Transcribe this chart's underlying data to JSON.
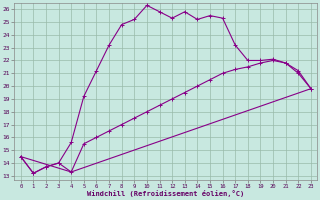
{
  "bg_color": "#c8e8e0",
  "line_color": "#880088",
  "grid_color": "#99bbaa",
  "xlabel": "Windchill (Refroidissement éolien,°C)",
  "xlim": [
    -0.5,
    23.5
  ],
  "ylim": [
    12.7,
    26.5
  ],
  "xticks": [
    0,
    1,
    2,
    3,
    4,
    5,
    6,
    7,
    8,
    9,
    10,
    11,
    12,
    13,
    14,
    15,
    16,
    17,
    18,
    19,
    20,
    21,
    22,
    23
  ],
  "yticks": [
    13,
    14,
    15,
    16,
    17,
    18,
    19,
    20,
    21,
    22,
    23,
    24,
    25,
    26
  ],
  "curve1_x": [
    0,
    1,
    2,
    3,
    4,
    5,
    6,
    7,
    8,
    9,
    10,
    11,
    12,
    13,
    14,
    15,
    16,
    17,
    18,
    19,
    20,
    21,
    22,
    23
  ],
  "curve1_y": [
    14.5,
    13.2,
    13.7,
    14.0,
    15.6,
    19.2,
    21.2,
    23.2,
    24.8,
    25.2,
    26.3,
    25.8,
    25.3,
    25.8,
    25.2,
    25.5,
    25.3,
    23.2,
    22.0,
    22.0,
    22.1,
    21.8,
    21.2,
    19.8
  ],
  "curve2_x": [
    0,
    1,
    2,
    3,
    4,
    5,
    6,
    7,
    8,
    9,
    10,
    11,
    12,
    13,
    14,
    15,
    16,
    17,
    18,
    19,
    20,
    21,
    22,
    23
  ],
  "curve2_y": [
    14.5,
    13.2,
    13.7,
    14.0,
    13.3,
    15.5,
    16.0,
    16.5,
    17.0,
    17.5,
    18.0,
    18.5,
    19.0,
    19.5,
    20.0,
    20.5,
    21.0,
    21.3,
    21.5,
    21.8,
    22.0,
    21.8,
    21.0,
    19.8
  ],
  "line3_x": [
    0,
    4,
    23
  ],
  "line3_y": [
    14.5,
    13.3,
    19.8
  ]
}
